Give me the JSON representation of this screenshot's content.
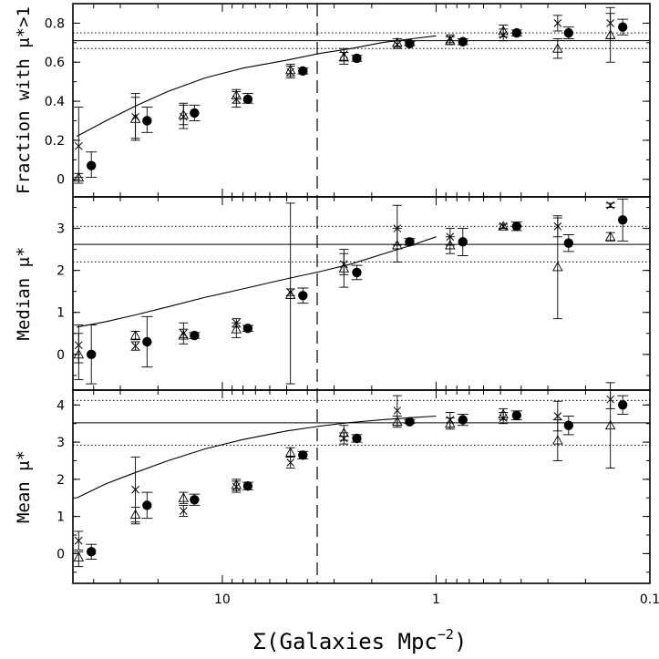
{
  "chart_data": {
    "type": "scatter",
    "x_axis": {
      "label": "Σ(Galaxies Mpc",
      "label_superscript": "−2",
      "label_close": ")",
      "scale": "log",
      "reversed": true,
      "range": [
        50,
        0.1
      ],
      "tick_labels": [
        {
          "value": 10,
          "text": "10"
        },
        {
          "value": 1,
          "text": "1"
        },
        {
          "value": 0.1,
          "text": "0.1"
        }
      ]
    },
    "panels": [
      {
        "id": "fraction",
        "ylabel": "Fraction with μ*>1",
        "ylim": [
          -0.09,
          0.9
        ],
        "yticks": [
          0,
          0.2,
          0.4,
          0.6,
          0.8
        ],
        "ytick_labels": [
          "0",
          "0.2",
          "0.4",
          "0.6",
          "0.8"
        ],
        "ref_solid": 0.71,
        "ref_dotted": [
          0.67,
          0.75
        ],
        "curve": {
          "x": [
            48,
            35,
            25,
            18,
            12,
            8,
            5,
            3.5,
            2.5,
            1.8,
            1.3,
            1.0
          ],
          "y": [
            0.22,
            0.3,
            0.38,
            0.45,
            0.52,
            0.57,
            0.61,
            0.645,
            0.67,
            0.7,
            0.72,
            0.735
          ]
        },
        "filled": [
          {
            "x": 41,
            "y": 0.07,
            "lo": 0.01,
            "hi": 0.14
          },
          {
            "x": 22.5,
            "y": 0.3,
            "lo": 0.24,
            "hi": 0.37
          },
          {
            "x": 13.5,
            "y": 0.34,
            "lo": 0.3,
            "hi": 0.38
          },
          {
            "x": 7.6,
            "y": 0.41,
            "lo": 0.39,
            "hi": 0.44
          },
          {
            "x": 4.2,
            "y": 0.555,
            "lo": 0.54,
            "hi": 0.57
          },
          {
            "x": 2.35,
            "y": 0.62,
            "lo": 0.605,
            "hi": 0.635
          },
          {
            "x": 1.33,
            "y": 0.695,
            "lo": 0.685,
            "hi": 0.705
          },
          {
            "x": 0.75,
            "y": 0.705,
            "lo": 0.69,
            "hi": 0.72
          },
          {
            "x": 0.42,
            "y": 0.75,
            "lo": 0.735,
            "hi": 0.765
          },
          {
            "x": 0.24,
            "y": 0.75,
            "lo": 0.72,
            "hi": 0.78
          },
          {
            "x": 0.134,
            "y": 0.78,
            "lo": 0.74,
            "hi": 0.82
          }
        ],
        "open": [
          {
            "x": 47,
            "y": 0.01,
            "lo": -0.02,
            "hi": 0.03
          },
          {
            "x": 25.5,
            "y": 0.31,
            "lo": 0.21,
            "hi": 0.42
          },
          {
            "x": 15.2,
            "y": 0.33,
            "lo": 0.28,
            "hi": 0.38
          },
          {
            "x": 8.6,
            "y": 0.43,
            "lo": 0.39,
            "hi": 0.46
          },
          {
            "x": 4.8,
            "y": 0.56,
            "lo": 0.53,
            "hi": 0.59
          },
          {
            "x": 2.7,
            "y": 0.625,
            "lo": 0.59,
            "hi": 0.65
          },
          {
            "x": 1.52,
            "y": 0.7,
            "lo": 0.68,
            "hi": 0.72
          },
          {
            "x": 0.86,
            "y": 0.71,
            "lo": 0.69,
            "hi": 0.73
          },
          {
            "x": 0.485,
            "y": 0.76,
            "lo": 0.73,
            "hi": 0.79
          },
          {
            "x": 0.27,
            "y": 0.67,
            "lo": 0.62,
            "hi": 0.72
          },
          {
            "x": 0.153,
            "y": 0.74,
            "lo": 0.6,
            "hi": 0.85
          }
        ],
        "cross": [
          {
            "x": 47,
            "y": 0.17,
            "lo": 0.01,
            "hi": 0.37
          },
          {
            "x": 25.5,
            "y": 0.32,
            "lo": 0.2,
            "hi": 0.44
          },
          {
            "x": 15.2,
            "y": 0.32,
            "lo": 0.26,
            "hi": 0.39
          },
          {
            "x": 8.6,
            "y": 0.41,
            "lo": 0.37,
            "hi": 0.45
          },
          {
            "x": 4.8,
            "y": 0.55,
            "lo": 0.52,
            "hi": 0.58
          },
          {
            "x": 2.7,
            "y": 0.64,
            "lo": 0.61,
            "hi": 0.67
          },
          {
            "x": 1.52,
            "y": 0.69,
            "lo": 0.67,
            "hi": 0.71
          },
          {
            "x": 0.86,
            "y": 0.72,
            "lo": 0.7,
            "hi": 0.74
          },
          {
            "x": 0.485,
            "y": 0.74,
            "lo": 0.71,
            "hi": 0.77
          },
          {
            "x": 0.27,
            "y": 0.8,
            "lo": 0.76,
            "hi": 0.84
          },
          {
            "x": 0.153,
            "y": 0.8,
            "lo": 0.72,
            "hi": 0.88
          }
        ]
      },
      {
        "id": "median",
        "ylabel": "Median μ*",
        "ylim": [
          -0.85,
          3.75
        ],
        "yticks": [
          0,
          1,
          2,
          3
        ],
        "ytick_labels": [
          "0",
          "1",
          "2",
          "3"
        ],
        "ref_solid": 2.62,
        "ref_dotted": [
          2.2,
          3.05
        ],
        "curve": {
          "x": [
            48,
            35,
            25,
            18,
            12,
            8,
            5,
            3.5,
            2.5,
            1.8,
            1.3,
            1.0
          ],
          "y": [
            0.65,
            0.78,
            0.95,
            1.13,
            1.36,
            1.56,
            1.8,
            1.97,
            2.15,
            2.38,
            2.6,
            2.8
          ]
        },
        "filled": [
          {
            "x": 41,
            "y": 0.0,
            "lo": -0.7,
            "hi": 0.7
          },
          {
            "x": 22.5,
            "y": 0.3,
            "lo": -0.3,
            "hi": 0.9
          },
          {
            "x": 13.5,
            "y": 0.45,
            "lo": 0.38,
            "hi": 0.52
          },
          {
            "x": 7.6,
            "y": 0.62,
            "lo": 0.55,
            "hi": 0.69
          },
          {
            "x": 4.2,
            "y": 1.4,
            "lo": 1.22,
            "hi": 1.58
          },
          {
            "x": 2.35,
            "y": 1.95,
            "lo": 1.78,
            "hi": 2.12
          },
          {
            "x": 1.33,
            "y": 2.68,
            "lo": 2.6,
            "hi": 2.76
          },
          {
            "x": 0.75,
            "y": 2.68,
            "lo": 2.35,
            "hi": 3.0
          },
          {
            "x": 0.42,
            "y": 3.05,
            "lo": 2.95,
            "hi": 3.15
          },
          {
            "x": 0.24,
            "y": 2.65,
            "lo": 2.45,
            "hi": 2.85
          },
          {
            "x": 0.134,
            "y": 3.2,
            "lo": 2.7,
            "hi": 3.7
          }
        ],
        "open": [
          {
            "x": 47,
            "y": 0.0,
            "lo": -0.6,
            "hi": 0.5
          },
          {
            "x": 25.5,
            "y": 0.45,
            "lo": 0.35,
            "hi": 0.55
          },
          {
            "x": 15.2,
            "y": 0.45,
            "lo": 0.25,
            "hi": 0.75
          },
          {
            "x": 8.6,
            "y": 0.6,
            "lo": 0.4,
            "hi": 0.75
          },
          {
            "x": 4.8,
            "y": 1.42,
            "lo": -0.7,
            "hi": 3.6
          },
          {
            "x": 2.7,
            "y": 2.05,
            "lo": 1.6,
            "hi": 2.5
          },
          {
            "x": 1.52,
            "y": 2.6,
            "lo": 2.2,
            "hi": 3.0
          },
          {
            "x": 0.86,
            "y": 2.6,
            "lo": 2.4,
            "hi": 2.8
          },
          {
            "x": 0.485,
            "y": 3.05,
            "lo": 3.0,
            "hi": 3.1
          },
          {
            "x": 0.27,
            "y": 2.08,
            "lo": 0.85,
            "hi": 3.3
          },
          {
            "x": 0.153,
            "y": 2.8,
            "lo": 2.7,
            "hi": 2.9
          }
        ],
        "cross": [
          {
            "x": 47,
            "y": 0.22,
            "lo": -0.2,
            "hi": 0.7
          },
          {
            "x": 25.5,
            "y": 0.2,
            "lo": 0.1,
            "hi": 0.3
          },
          {
            "x": 15.2,
            "y": 0.5,
            "lo": 0.4,
            "hi": 0.6
          },
          {
            "x": 8.6,
            "y": 0.75,
            "lo": 0.65,
            "hi": 0.85
          },
          {
            "x": 4.8,
            "y": 1.48,
            "lo": 1.4,
            "hi": 1.56
          },
          {
            "x": 2.7,
            "y": 2.15,
            "lo": 1.9,
            "hi": 2.4
          },
          {
            "x": 1.52,
            "y": 3.0,
            "lo": 2.6,
            "hi": 3.55
          },
          {
            "x": 0.86,
            "y": 2.8,
            "lo": 2.6,
            "hi": 3.0
          },
          {
            "x": 0.485,
            "y": 3.05,
            "lo": 3.0,
            "hi": 3.1
          },
          {
            "x": 0.27,
            "y": 3.05,
            "lo": 2.8,
            "hi": 3.25
          },
          {
            "x": 0.153,
            "y": 3.55,
            "lo": 3.5,
            "hi": 3.6
          }
        ]
      },
      {
        "id": "mean",
        "ylabel": "Mean μ*",
        "ylim": [
          -0.8,
          4.4
        ],
        "yticks": [
          0,
          1,
          2,
          3,
          4
        ],
        "ytick_labels": [
          "0",
          "1",
          "2",
          "3",
          "4"
        ],
        "ref_solid": 3.52,
        "ref_dotted": [
          2.92,
          4.12
        ],
        "curve": {
          "x": [
            48,
            35,
            25,
            18,
            12,
            8,
            5,
            3.5,
            2.5,
            1.8,
            1.3,
            1.0
          ],
          "y": [
            1.5,
            1.88,
            2.2,
            2.5,
            2.82,
            3.07,
            3.3,
            3.43,
            3.53,
            3.6,
            3.66,
            3.7
          ]
        },
        "filled": [
          {
            "x": 41,
            "y": 0.05,
            "lo": -0.15,
            "hi": 0.25
          },
          {
            "x": 22.5,
            "y": 1.3,
            "lo": 0.95,
            "hi": 1.65
          },
          {
            "x": 13.5,
            "y": 1.45,
            "lo": 1.3,
            "hi": 1.6
          },
          {
            "x": 7.6,
            "y": 1.82,
            "lo": 1.72,
            "hi": 1.92
          },
          {
            "x": 4.2,
            "y": 2.65,
            "lo": 2.55,
            "hi": 2.75
          },
          {
            "x": 2.35,
            "y": 3.1,
            "lo": 3.0,
            "hi": 3.2
          },
          {
            "x": 1.33,
            "y": 3.55,
            "lo": 3.5,
            "hi": 3.6
          },
          {
            "x": 0.75,
            "y": 3.6,
            "lo": 3.45,
            "hi": 3.75
          },
          {
            "x": 0.42,
            "y": 3.72,
            "lo": 3.6,
            "hi": 3.84
          },
          {
            "x": 0.24,
            "y": 3.45,
            "lo": 3.2,
            "hi": 3.7
          },
          {
            "x": 0.134,
            "y": 4.0,
            "lo": 3.75,
            "hi": 4.25
          }
        ],
        "open": [
          {
            "x": 47,
            "y": -0.1,
            "lo": -0.35,
            "hi": 0.05
          },
          {
            "x": 25.5,
            "y": 1.05,
            "lo": 0.85,
            "hi": 1.25
          },
          {
            "x": 15.2,
            "y": 1.5,
            "lo": 1.35,
            "hi": 1.65
          },
          {
            "x": 8.6,
            "y": 1.85,
            "lo": 1.7,
            "hi": 2.0
          },
          {
            "x": 4.8,
            "y": 2.72,
            "lo": 2.6,
            "hi": 2.85
          },
          {
            "x": 2.7,
            "y": 3.25,
            "lo": 3.05,
            "hi": 3.45
          },
          {
            "x": 1.52,
            "y": 3.55,
            "lo": 3.4,
            "hi": 3.7
          },
          {
            "x": 0.86,
            "y": 3.5,
            "lo": 3.35,
            "hi": 3.65
          },
          {
            "x": 0.485,
            "y": 3.75,
            "lo": 3.6,
            "hi": 3.9
          },
          {
            "x": 0.27,
            "y": 3.05,
            "lo": 2.5,
            "hi": 3.6
          },
          {
            "x": 0.153,
            "y": 3.45,
            "lo": 2.3,
            "hi": 4.6
          }
        ],
        "cross": [
          {
            "x": 47,
            "y": 0.35,
            "lo": 0.1,
            "hi": 0.6
          },
          {
            "x": 25.5,
            "y": 1.72,
            "lo": 0.8,
            "hi": 2.6
          },
          {
            "x": 15.2,
            "y": 1.15,
            "lo": 1.0,
            "hi": 1.3
          },
          {
            "x": 8.6,
            "y": 1.8,
            "lo": 1.65,
            "hi": 1.95
          },
          {
            "x": 4.8,
            "y": 2.45,
            "lo": 2.3,
            "hi": 2.6
          },
          {
            "x": 2.7,
            "y": 3.1,
            "lo": 2.95,
            "hi": 3.25
          },
          {
            "x": 1.52,
            "y": 3.85,
            "lo": 3.45,
            "hi": 4.25
          },
          {
            "x": 0.86,
            "y": 3.6,
            "lo": 3.4,
            "hi": 3.8
          },
          {
            "x": 0.485,
            "y": 3.65,
            "lo": 3.5,
            "hi": 3.8
          },
          {
            "x": 0.27,
            "y": 3.7,
            "lo": 3.3,
            "hi": 4.1
          },
          {
            "x": 0.153,
            "y": 4.15,
            "lo": 3.9,
            "hi": 4.4
          }
        ]
      }
    ],
    "vertical_dashed_line_x": 3.6,
    "grid": false,
    "legend": "none"
  }
}
